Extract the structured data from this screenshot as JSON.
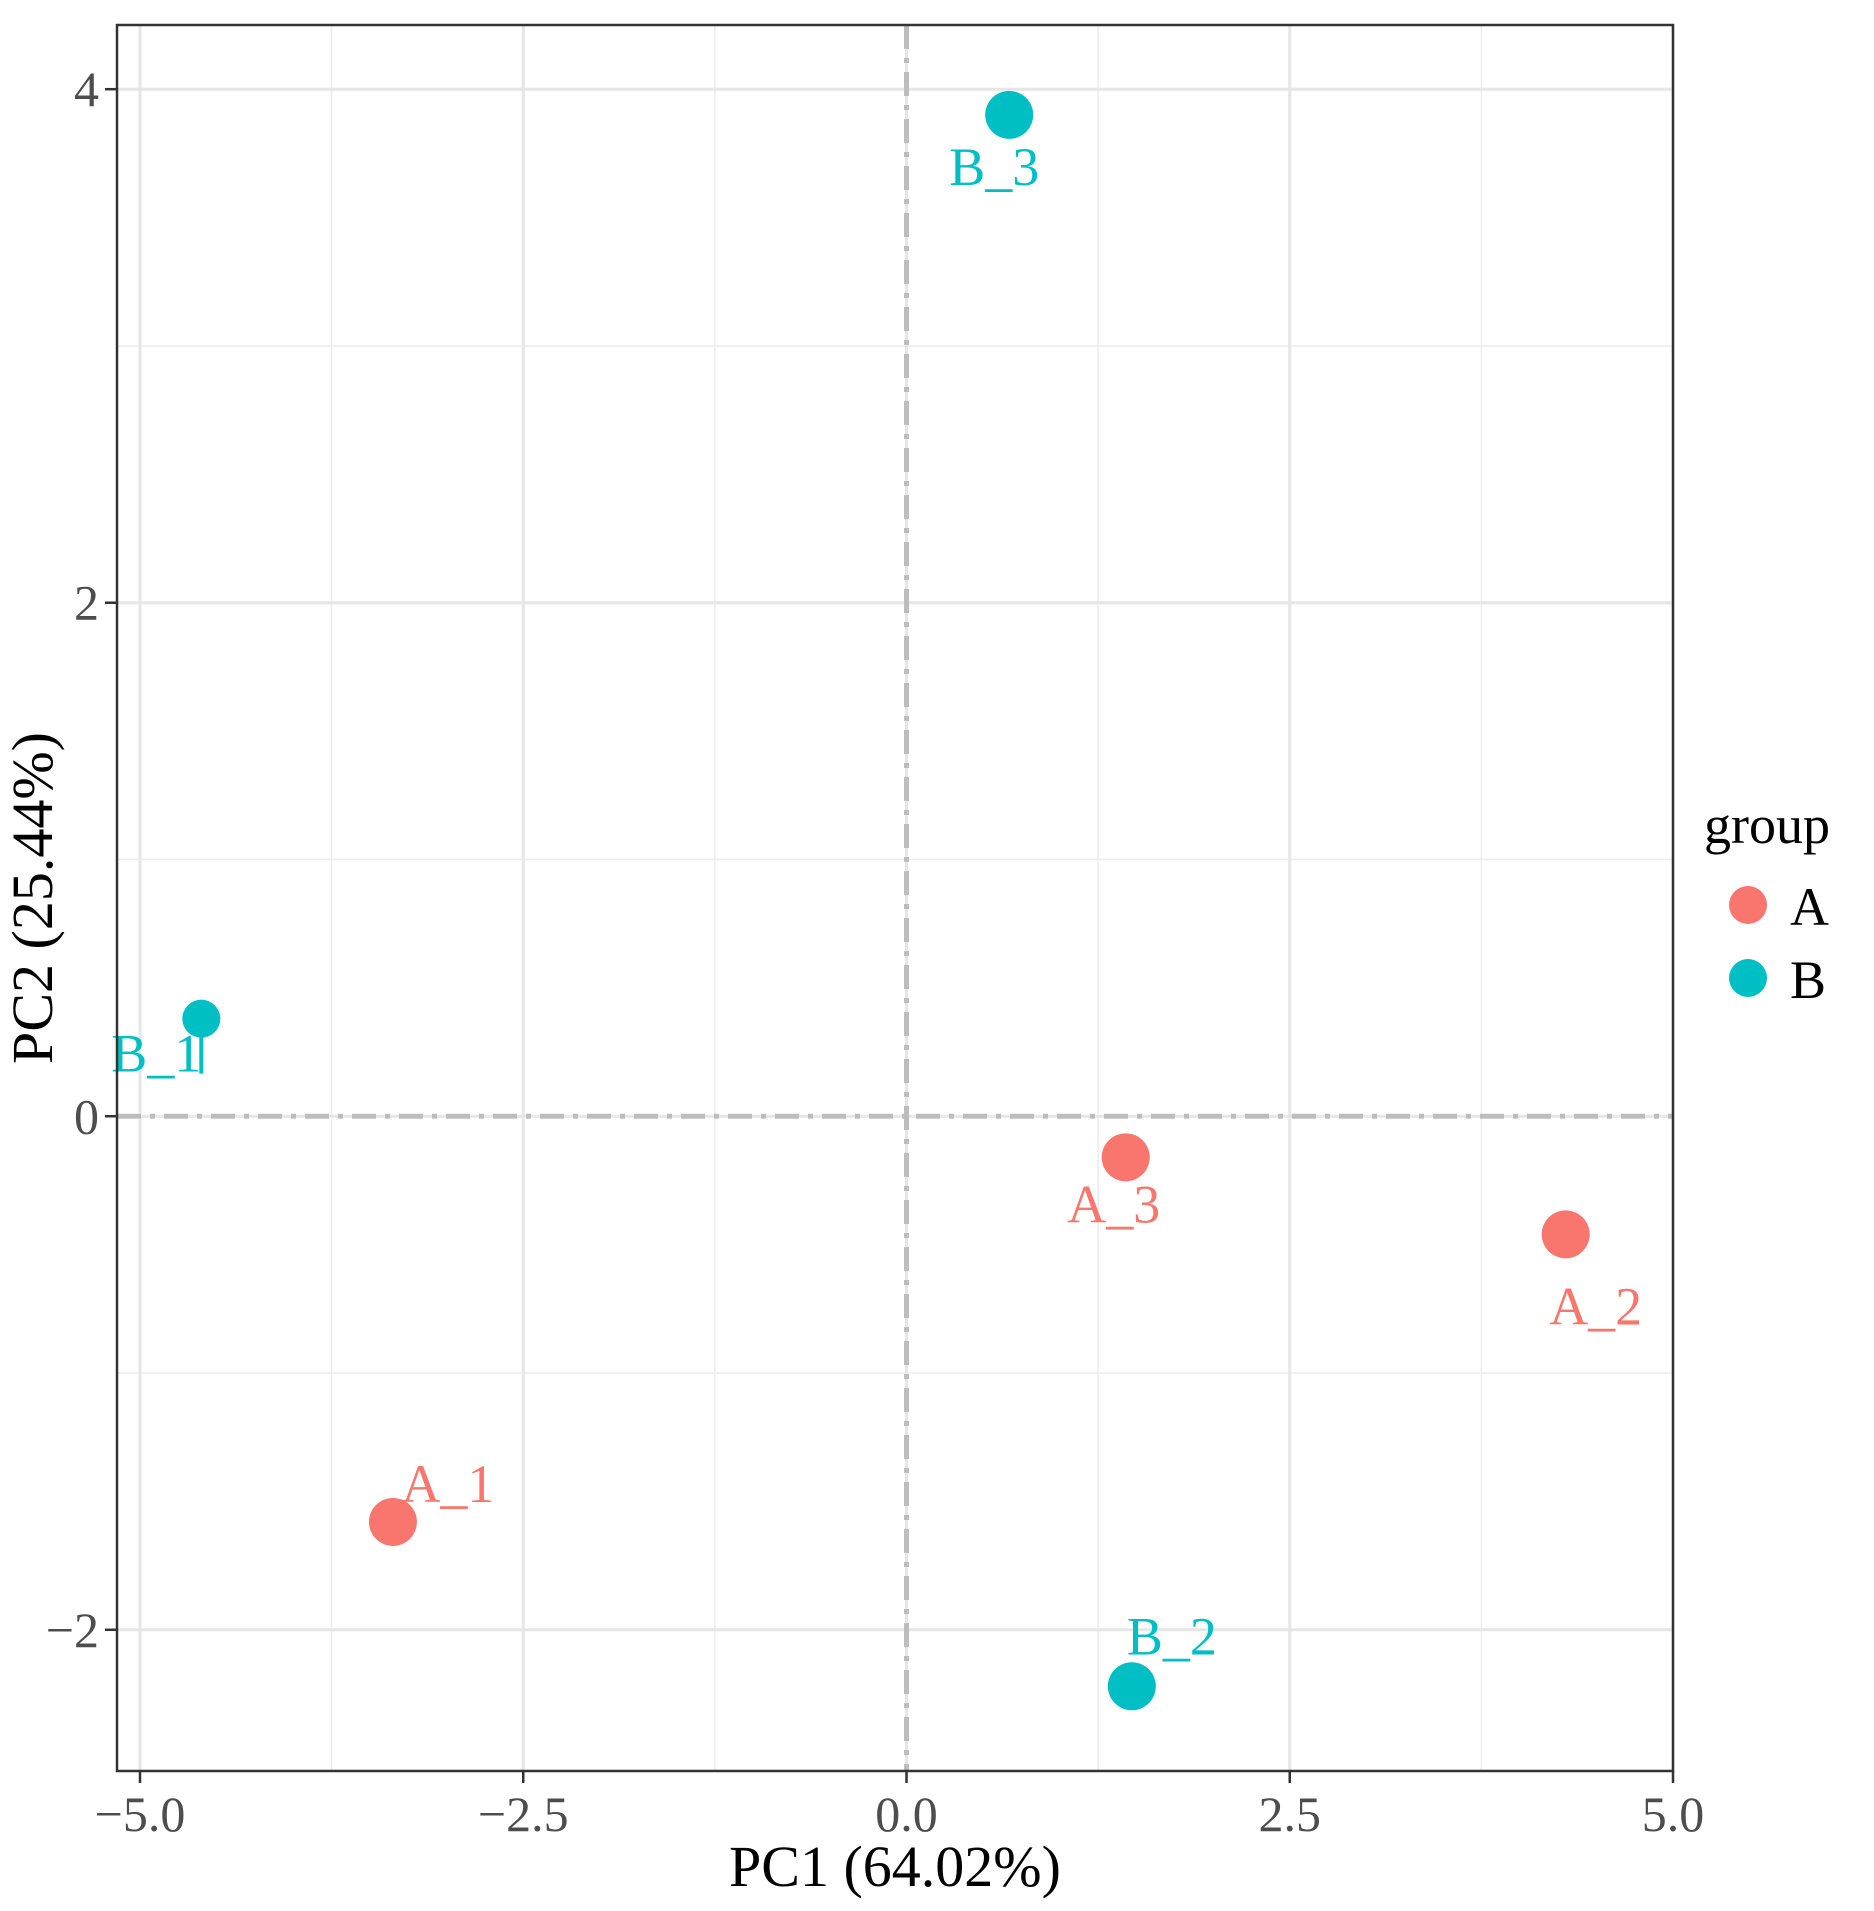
{
  "chart_data": {
    "type": "scatter",
    "title": "",
    "xlabel": "PC1 (64.02%)",
    "ylabel": "PC2 (25.44%)",
    "xlim": [
      -5.15,
      5.0
    ],
    "ylim": [
      -2.55,
      4.25
    ],
    "x_ticks": [
      -5.0,
      -2.5,
      0.0,
      2.5,
      5.0
    ],
    "x_tick_labels": [
      "−5.0",
      "−2.5",
      "0.0",
      "2.5",
      "5.0"
    ],
    "y_ticks": [
      -2,
      0,
      2,
      4
    ],
    "y_tick_labels": [
      "−2",
      "0",
      "2",
      "4"
    ],
    "grid": true,
    "reference_lines": {
      "x": 0,
      "y": 0
    },
    "points": [
      {
        "label": "A_1",
        "group": "A",
        "x": -3.35,
        "y": -1.58
      },
      {
        "label": "A_2",
        "group": "A",
        "x": 4.3,
        "y": -0.46
      },
      {
        "label": "A_3",
        "group": "A",
        "x": 1.43,
        "y": -0.16
      },
      {
        "label": "B_1",
        "group": "B",
        "x": -4.6,
        "y": 0.38
      },
      {
        "label": "B_2",
        "group": "B",
        "x": 1.47,
        "y": -2.22
      },
      {
        "label": "B_3",
        "group": "B",
        "x": 0.67,
        "y": 3.9
      }
    ],
    "legend": {
      "title": "group",
      "position": "right",
      "entries": [
        {
          "name": "A",
          "color": "#F8766D"
        },
        {
          "name": "B",
          "color": "#00BFC4"
        }
      ]
    }
  }
}
